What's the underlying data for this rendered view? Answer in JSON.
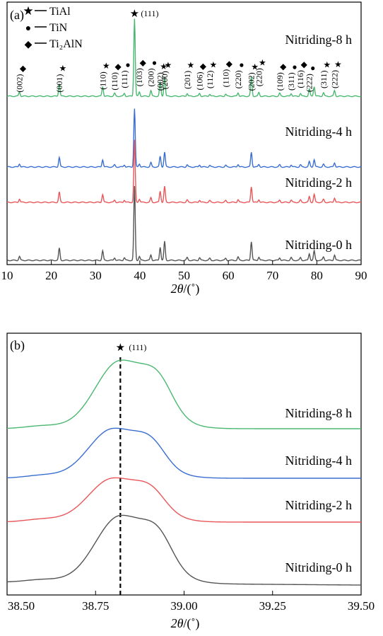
{
  "chart_data": [
    {
      "panel": "(a)",
      "type": "line",
      "xlabel_main": "2θ",
      "xlabel_unit": "/(˚)",
      "xlim": [
        10,
        90
      ],
      "xticks": [
        10,
        20,
        30,
        40,
        50,
        60,
        70,
        80,
        90
      ],
      "legend": [
        {
          "symbol": "★",
          "label": "TiAl"
        },
        {
          "symbol": "●",
          "label": "TiN"
        },
        {
          "symbol": "◆",
          "label": "Ti₂AlN"
        }
      ],
      "series": [
        {
          "name": "Nitriding-8 h",
          "color": "#4bb871"
        },
        {
          "name": "Nitriding-4 h",
          "color": "#3a6fd1"
        },
        {
          "name": "Nitriding-2 h",
          "color": "#e8575a"
        },
        {
          "name": "Nitriding-0 h",
          "color": "#555555"
        }
      ],
      "peaks": [
        {
          "x": 12.8,
          "symbol": "◆",
          "label": "(002)"
        },
        {
          "x": 21.8,
          "symbol": "★",
          "label": "(001)"
        },
        {
          "x": 31.6,
          "symbol": "★",
          "label": "(110)"
        },
        {
          "x": 34.3,
          "symbol": "◆",
          "label": "(110)"
        },
        {
          "x": 36.5,
          "symbol": "●",
          "label": "(111)"
        },
        {
          "x": 38.8,
          "symbol": "★",
          "label": "(111)"
        },
        {
          "x": 39.9,
          "symbol": "◆",
          "label": "(103)"
        },
        {
          "x": 42.5,
          "symbol": "●",
          "label": "(200)"
        },
        {
          "x": 44.6,
          "symbol": "★",
          "label": "(002)"
        },
        {
          "x": 45.6,
          "symbol": "★",
          "label": "(200)"
        },
        {
          "x": 50.7,
          "symbol": "★",
          "label": "(201)"
        },
        {
          "x": 53.5,
          "symbol": "◆",
          "label": "(106)"
        },
        {
          "x": 55.8,
          "symbol": "★",
          "label": "(112)"
        },
        {
          "x": 59.4,
          "symbol": "◆",
          "label": "(110)"
        },
        {
          "x": 62.2,
          "symbol": "●",
          "label": "(220)"
        },
        {
          "x": 65.2,
          "symbol": "★",
          "label": "(202)"
        },
        {
          "x": 66.9,
          "symbol": "★",
          "label": "(220)"
        },
        {
          "x": 71.6,
          "symbol": "◆",
          "label": "(109)"
        },
        {
          "x": 74.2,
          "symbol": "●",
          "label": "(311)"
        },
        {
          "x": 76.3,
          "symbol": "◆",
          "label": "(116)"
        },
        {
          "x": 78.3,
          "symbol": "●",
          "label": "(222)"
        },
        {
          "x": 81.5,
          "symbol": "★",
          "label": "(311)"
        },
        {
          "x": 84.0,
          "symbol": "★",
          "label": "(222)"
        }
      ]
    },
    {
      "panel": "(b)",
      "type": "line",
      "xlabel_main": "2θ",
      "xlabel_unit": "/(˚)",
      "xlim": [
        38.5,
        39.5
      ],
      "xticks": [
        "38.50",
        "38.75",
        "39.00",
        "39.25",
        "39.50"
      ],
      "marker": {
        "x": 38.82,
        "symbol": "★",
        "label": "(111)"
      },
      "series": [
        {
          "name": "Nitriding-8 h",
          "color": "#4bb871",
          "peak_x": 38.82
        },
        {
          "name": "Nitriding-4 h",
          "color": "#3a6fd1",
          "peak_x": 38.8
        },
        {
          "name": "Nitriding-2 h",
          "color": "#e8575a",
          "peak_x": 38.8
        },
        {
          "name": "Nitriding-0 h",
          "color": "#555555",
          "peak_x": 38.82
        }
      ]
    }
  ]
}
